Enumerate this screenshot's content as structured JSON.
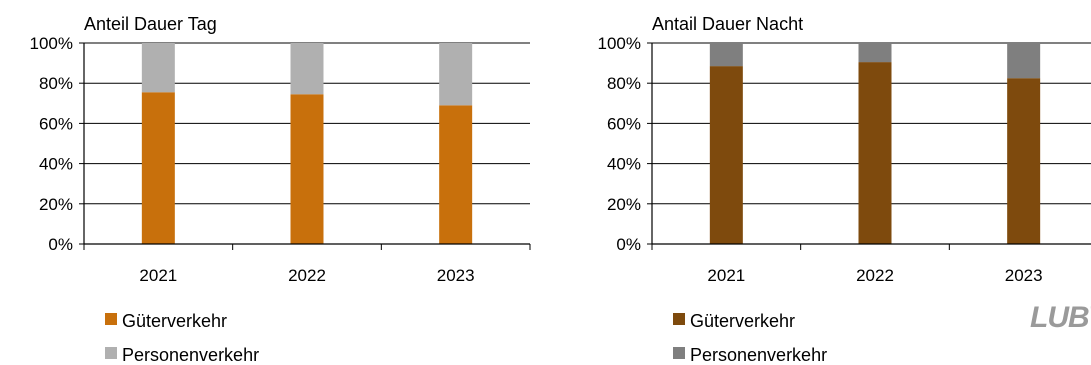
{
  "colors": {
    "gueter_tag": "#C8700C",
    "gueter_nacht": "#7E4A0D",
    "personen_tag": "#B0B0B0",
    "personen_nacht": "#7F7F7F"
  },
  "logo": {
    "text": "LUBW"
  },
  "chart_data": [
    {
      "type": "bar",
      "stacked": true,
      "title": "Anteil Dauer Tag",
      "categories": [
        "2021",
        "2022",
        "2023"
      ],
      "ylim": [
        0,
        100
      ],
      "yticks": [
        "0%",
        "20%",
        "40%",
        "60%",
        "80%",
        "100%"
      ],
      "grid": true,
      "legend_position": "bottom-left",
      "series": [
        {
          "name": "Güterverkehr",
          "values": [
            75.5,
            74.5,
            69
          ]
        },
        {
          "name": "Personenverkehr",
          "values": [
            24.5,
            25.5,
            31
          ]
        }
      ]
    },
    {
      "type": "bar",
      "stacked": true,
      "title": "Antail Dauer Nacht",
      "categories": [
        "2021",
        "2022",
        "2023"
      ],
      "ylim": [
        0,
        100
      ],
      "yticks": [
        "0%",
        "20%",
        "40%",
        "60%",
        "80%",
        "100%"
      ],
      "grid": true,
      "legend_position": "bottom-left",
      "series": [
        {
          "name": "Güterverkehr",
          "values": [
            88.5,
            90.5,
            82.5
          ]
        },
        {
          "name": "Personenverkehr",
          "values": [
            11.5,
            9.5,
            17.5
          ]
        }
      ]
    }
  ]
}
